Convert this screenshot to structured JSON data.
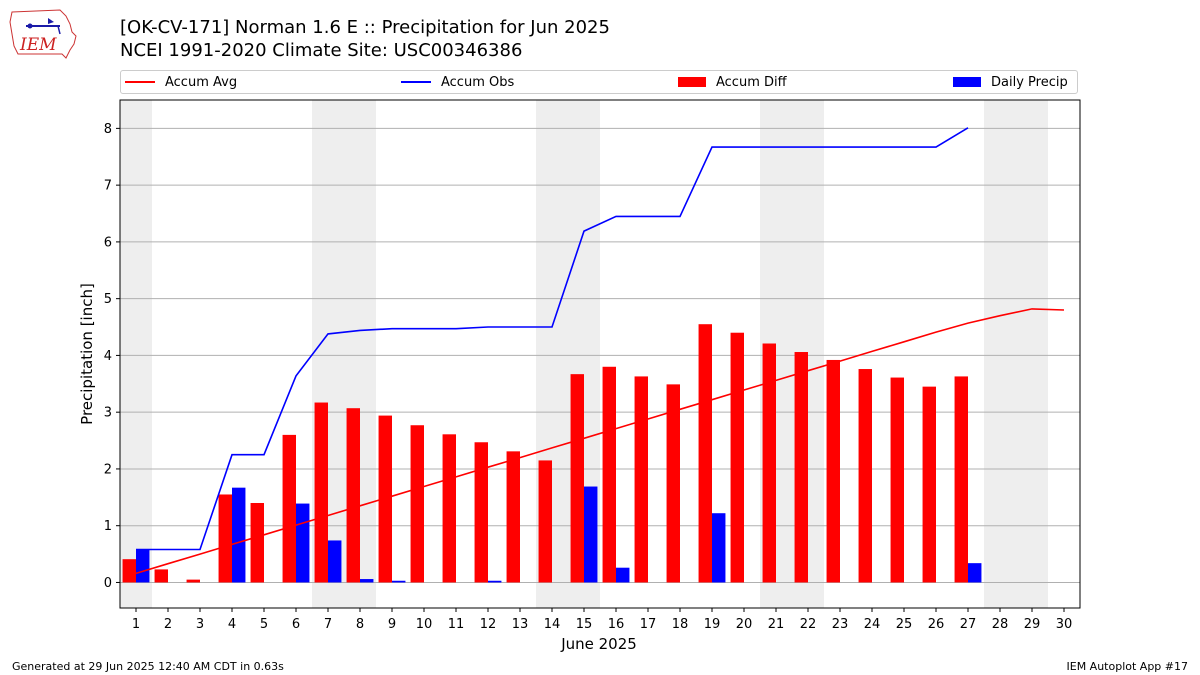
{
  "header": {
    "title_line1": "[OK-CV-171] Norman 1.6 E :: Precipitation for Jun 2025",
    "title_line2": "NCEI 1991-2020 Climate Site: USC00346386",
    "logo_text": "IEM"
  },
  "legend": [
    {
      "label": "Accum Avg",
      "kind": "line",
      "color": "#ff0000"
    },
    {
      "label": "Accum Obs",
      "kind": "line",
      "color": "#0000ff"
    },
    {
      "label": "Accum Diff",
      "kind": "box",
      "color": "#ff0000"
    },
    {
      "label": "Daily Precip",
      "kind": "box",
      "color": "#0000ff"
    }
  ],
  "footer": {
    "left": "Generated at 29 Jun 2025 12:40 AM CDT in 0.63s",
    "right": "IEM Autoplot App #17"
  },
  "chart_data": {
    "type": "bar",
    "xlabel": "June 2025",
    "ylabel": "Precipitation [inch]",
    "xlim": [
      0.5,
      30.5
    ],
    "ylim": [
      -0.45,
      8.5
    ],
    "yticks": [
      0,
      1,
      2,
      3,
      4,
      5,
      6,
      7,
      8
    ],
    "categories": [
      "1",
      "2",
      "3",
      "4",
      "5",
      "6",
      "7",
      "8",
      "9",
      "10",
      "11",
      "12",
      "13",
      "14",
      "15",
      "16",
      "17",
      "18",
      "19",
      "20",
      "21",
      "22",
      "23",
      "24",
      "25",
      "26",
      "27",
      "28",
      "29",
      "30"
    ],
    "weekend_days": [
      1,
      7,
      8,
      14,
      15,
      21,
      22,
      28,
      29
    ],
    "grid": true,
    "legend_position": "top",
    "series": [
      {
        "name": "Accum Diff",
        "kind": "bar",
        "color": "#ff0000",
        "values": [
          0.41,
          0.23,
          0.05,
          1.55,
          1.4,
          2.6,
          3.17,
          3.07,
          2.94,
          2.77,
          2.61,
          2.47,
          2.31,
          2.15,
          3.67,
          3.8,
          3.63,
          3.49,
          4.55,
          4.4,
          4.21,
          4.06,
          3.92,
          3.76,
          3.61,
          3.45,
          3.63,
          null,
          null,
          null
        ]
      },
      {
        "name": "Daily Precip",
        "kind": "bar",
        "color": "#0000ff",
        "values": [
          0.58,
          0,
          0,
          1.67,
          0,
          1.39,
          0.74,
          0.06,
          0.03,
          0,
          0,
          0.03,
          0,
          0,
          1.69,
          0.26,
          0,
          0,
          1.22,
          0,
          0,
          0,
          0,
          0,
          0,
          0,
          0.34,
          null,
          null,
          null
        ]
      },
      {
        "name": "Accum Avg",
        "kind": "line",
        "color": "#ff0000",
        "values": [
          0.16,
          0.33,
          0.5,
          0.67,
          0.84,
          1.01,
          1.18,
          1.35,
          1.52,
          1.69,
          1.86,
          2.03,
          2.2,
          2.37,
          2.54,
          2.71,
          2.88,
          3.05,
          3.22,
          3.39,
          3.56,
          3.73,
          3.9,
          4.07,
          4.24,
          4.41,
          4.57,
          4.7,
          4.82,
          4.8
        ]
      },
      {
        "name": "Accum Obs",
        "kind": "line",
        "color": "#0000ff",
        "values": [
          0.58,
          0.58,
          0.58,
          2.25,
          2.25,
          3.64,
          4.38,
          4.44,
          4.47,
          4.47,
          4.47,
          4.5,
          4.5,
          4.5,
          6.19,
          6.45,
          6.45,
          6.45,
          7.67,
          7.67,
          7.67,
          7.67,
          7.67,
          7.67,
          7.67,
          7.67,
          8.01,
          null,
          null,
          null
        ]
      }
    ]
  }
}
